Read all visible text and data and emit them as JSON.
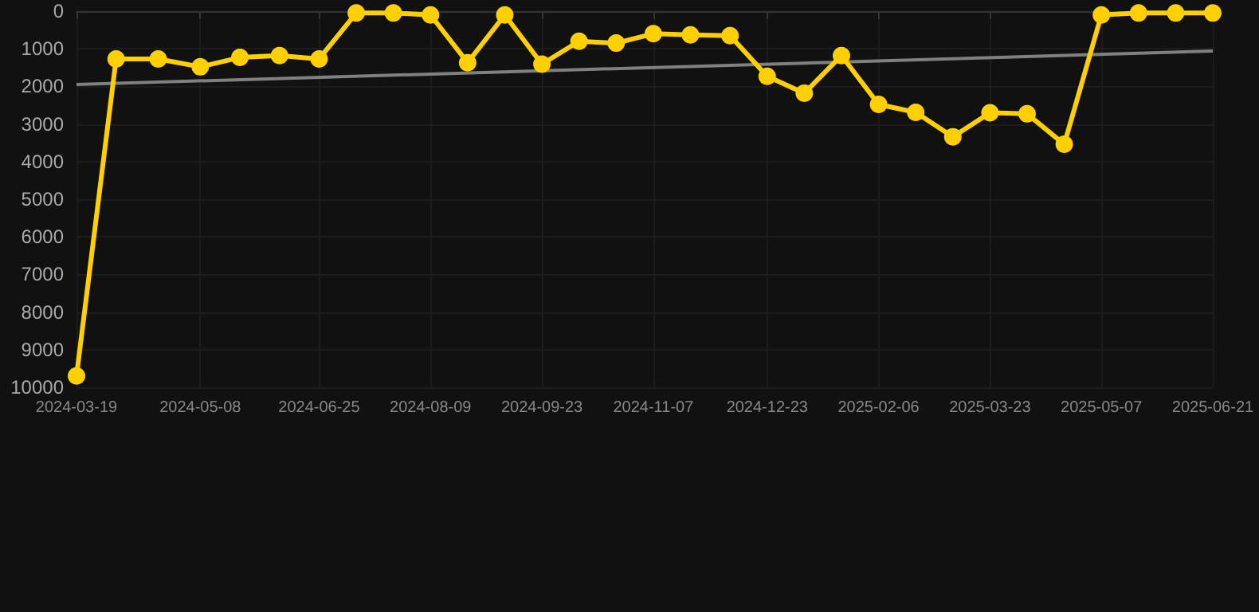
{
  "chart_data": {
    "type": "line",
    "x": [
      "2024-03-19",
      "2024-04-04",
      "2024-04-21",
      "2024-05-08",
      "2024-05-24",
      "2024-06-09",
      "2024-06-25",
      "2024-07-10",
      "2024-07-25",
      "2024-08-09",
      "2024-08-24",
      "2024-09-08",
      "2024-09-23",
      "2024-10-08",
      "2024-10-23",
      "2024-11-07",
      "2024-11-22",
      "2024-12-08",
      "2024-12-23",
      "2025-01-07",
      "2025-01-22",
      "2025-02-06",
      "2025-02-21",
      "2025-03-08",
      "2025-03-23",
      "2025-04-07",
      "2025-04-22",
      "2025-05-07",
      "2025-05-22",
      "2025-06-06",
      "2025-06-21"
    ],
    "series": [
      {
        "color": "#ffd000",
        "values": [
          9700,
          1270,
          1270,
          1480,
          1230,
          1180,
          1270,
          50,
          50,
          100,
          1370,
          100,
          1410,
          800,
          850,
          600,
          630,
          650,
          1730,
          2180,
          1180,
          2480,
          2690,
          3340,
          2700,
          2730,
          3540,
          100,
          50,
          50,
          50
        ]
      },
      {
        "type": "line",
        "color": "#808080",
        "marker": "none",
        "x": [
          "2024-03-19",
          "2025-06-21"
        ],
        "values": [
          1950,
          1060
        ]
      }
    ],
    "ylim": [
      10000,
      0
    ],
    "yticks": [
      0,
      1000,
      2000,
      3000,
      4000,
      5000,
      6000,
      7000,
      8000,
      9000,
      10000
    ],
    "xlim": [
      "2024-03-19",
      "2025-06-21"
    ],
    "xticks": [
      "2024-03-19",
      "2024-05-08",
      "2024-06-25",
      "2024-08-09",
      "2024-09-23",
      "2024-11-07",
      "2024-12-23",
      "2025-02-06",
      "2025-03-23",
      "2025-05-07",
      "2025-06-21"
    ],
    "grid": true,
    "marker": "circle",
    "line_style": "solid"
  }
}
